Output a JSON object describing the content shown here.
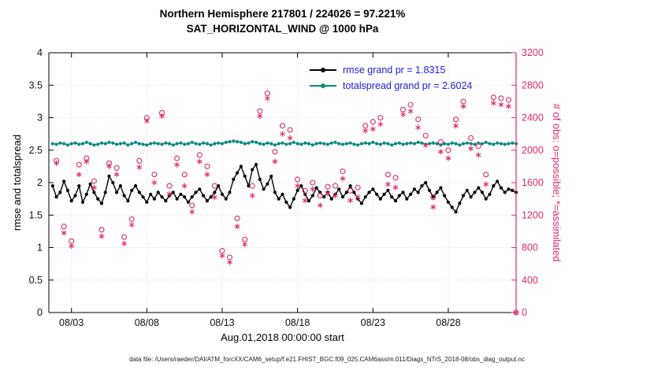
{
  "chart_data": {
    "type": "line+scatter",
    "title": "Northern Hemisphere 217801 / 224026 = 97.221%",
    "subtitle": "SAT_HORIZONTAL_WIND @ 1000 hPa",
    "xlabel": "Aug.01,2018 00:00:00 start",
    "ylabel_left": "rmse and totalspread",
    "ylabel_right": "# of obs: o=possible; *=assimilated",
    "caption": "data file: /Users/raeder/DAI/ATM_forcXX/CAM6_setup/f.e21.FHIST_BGC.f09_025.CAM6assim.011/Diags_NTrS_2018-08/obs_diag_output.nc",
    "xlim": [
      0.5,
      31.5
    ],
    "x_ticks": [
      {
        "v": 2,
        "label": "08/03"
      },
      {
        "v": 7,
        "label": "08/08"
      },
      {
        "v": 12,
        "label": "08/13"
      },
      {
        "v": 17,
        "label": "08/18"
      },
      {
        "v": 22,
        "label": "08/23"
      },
      {
        "v": 27,
        "label": "08/28"
      }
    ],
    "ylim_left": [
      0,
      4
    ],
    "yticks_left": [
      0,
      0.5,
      1,
      1.5,
      2,
      2.5,
      3,
      3.5,
      4
    ],
    "ylim_right": [
      0,
      3200
    ],
    "yticks_right": [
      0,
      400,
      800,
      1200,
      1600,
      2000,
      2400,
      2800,
      3200
    ],
    "grid": true,
    "legend_text_color": "#2020dd",
    "axis_color_left": "#000000",
    "axis_color_right": "#df2a68",
    "series": [
      {
        "name": "rmse grand pr = 1.8315",
        "color": "#000000",
        "axis": "left",
        "marker": "dot",
        "x": {
          "start": 0.75,
          "step": 0.25,
          "count": 124
        },
        "values": [
          1.95,
          1.78,
          1.85,
          2.02,
          1.88,
          1.72,
          1.8,
          1.95,
          1.7,
          1.82,
          1.98,
          1.85,
          1.75,
          1.68,
          1.85,
          2.1,
          2.0,
          1.85,
          1.95,
          1.8,
          1.72,
          1.88,
          1.95,
          1.85,
          1.78,
          1.7,
          1.82,
          1.75,
          1.85,
          1.78,
          1.72,
          1.8,
          1.85,
          1.75,
          1.82,
          1.78,
          1.7,
          1.78,
          1.85,
          1.9,
          1.8,
          1.72,
          1.78,
          1.85,
          1.95,
          1.82,
          1.75,
          1.85,
          2.05,
          2.15,
          2.25,
          2.1,
          1.95,
          2.2,
          2.28,
          2.05,
          1.9,
          1.98,
          2.1,
          1.85,
          1.75,
          1.82,
          1.7,
          1.62,
          1.75,
          1.88,
          1.95,
          1.82,
          1.72,
          1.8,
          1.92,
          1.85,
          1.78,
          1.85,
          1.75,
          1.82,
          1.9,
          1.78,
          1.85,
          1.95,
          1.85,
          1.75,
          1.68,
          1.78,
          1.85,
          1.9,
          1.82,
          1.75,
          1.82,
          1.88,
          1.78,
          1.72,
          1.8,
          1.85,
          1.75,
          1.82,
          1.9,
          1.85,
          1.95,
          2.0,
          1.88,
          1.78,
          1.85,
          1.92,
          1.8,
          1.7,
          1.62,
          1.55,
          1.68,
          1.8,
          1.88,
          1.78,
          1.85,
          1.92,
          1.85,
          1.75,
          1.82,
          1.95,
          2.02,
          1.92,
          1.85,
          1.9,
          1.88,
          1.85
        ]
      },
      {
        "name": "totalspread grand pr = 2.6024",
        "color": "#0b8a80",
        "axis": "left",
        "marker": "dot",
        "x": {
          "start": 0.75,
          "step": 0.25,
          "count": 124
        },
        "values": [
          2.6,
          2.59,
          2.61,
          2.6,
          2.58,
          2.6,
          2.61,
          2.59,
          2.6,
          2.62,
          2.6,
          2.58,
          2.59,
          2.61,
          2.6,
          2.62,
          2.61,
          2.59,
          2.6,
          2.61,
          2.58,
          2.6,
          2.62,
          2.6,
          2.59,
          2.58,
          2.6,
          2.61,
          2.6,
          2.59,
          2.61,
          2.6,
          2.58,
          2.6,
          2.61,
          2.59,
          2.6,
          2.62,
          2.6,
          2.59,
          2.61,
          2.6,
          2.58,
          2.6,
          2.61,
          2.6,
          2.62,
          2.63,
          2.64,
          2.63,
          2.62,
          2.6,
          2.61,
          2.63,
          2.62,
          2.6,
          2.59,
          2.61,
          2.6,
          2.58,
          2.6,
          2.61,
          2.59,
          2.6,
          2.62,
          2.6,
          2.59,
          2.61,
          2.6,
          2.58,
          2.6,
          2.61,
          2.6,
          2.59,
          2.61,
          2.62,
          2.6,
          2.59,
          2.6,
          2.61,
          2.59,
          2.58,
          2.6,
          2.61,
          2.6,
          2.62,
          2.6,
          2.59,
          2.61,
          2.6,
          2.58,
          2.6,
          2.61,
          2.59,
          2.6,
          2.61,
          2.6,
          2.62,
          2.61,
          2.59,
          2.6,
          2.61,
          2.6,
          2.58,
          2.6,
          2.59,
          2.61,
          2.6,
          2.58,
          2.6,
          2.61,
          2.6,
          2.59,
          2.61,
          2.6,
          2.62,
          2.6,
          2.59,
          2.61,
          2.6,
          2.59,
          2.6,
          2.61,
          2.6
        ]
      }
    ],
    "scatter": [
      {
        "name": "possible",
        "marker": "circle",
        "color": "#df2a68",
        "axis": "right",
        "x": {
          "start": 1.0,
          "step": 0.5,
          "count": 62
        },
        "values": [
          1870,
          1060,
          880,
          1820,
          1900,
          1620,
          1020,
          1840,
          1780,
          930,
          1150,
          1870,
          2400,
          1700,
          2460,
          1560,
          1900,
          1700,
          1320,
          1940,
          1800,
          1560,
          760,
          680,
          1160,
          900,
          1560,
          2480,
          2700,
          1980,
          2300,
          2250,
          1640,
          1500,
          1600,
          1440,
          1550,
          1560,
          1740,
          1500,
          1540,
          2300,
          2350,
          2400,
          1700,
          1660,
          2500,
          2560,
          2380,
          2180,
          1420,
          2100,
          2000,
          2380,
          2600,
          2150,
          2050,
          1700,
          2650,
          2640,
          2620,
          0
        ]
      },
      {
        "name": "assimilated",
        "marker": "asterisk",
        "color": "#df2a68",
        "axis": "right",
        "x": {
          "start": 1.0,
          "step": 0.5,
          "count": 62
        },
        "values": [
          1840,
          980,
          820,
          1700,
          1860,
          1540,
          940,
          1800,
          1700,
          850,
          1080,
          1790,
          2360,
          1600,
          2420,
          1460,
          1820,
          1560,
          1240,
          1860,
          1700,
          1420,
          700,
          620,
          1060,
          840,
          1440,
          2420,
          2640,
          1860,
          2200,
          2150,
          1560,
          1380,
          1520,
          1320,
          1470,
          1440,
          1650,
          1380,
          1420,
          2240,
          2260,
          2320,
          1580,
          1540,
          2440,
          2480,
          2280,
          2060,
          1300,
          1980,
          1900,
          2300,
          2540,
          2020,
          1940,
          1580,
          2580,
          2560,
          2540,
          0
        ]
      }
    ]
  }
}
